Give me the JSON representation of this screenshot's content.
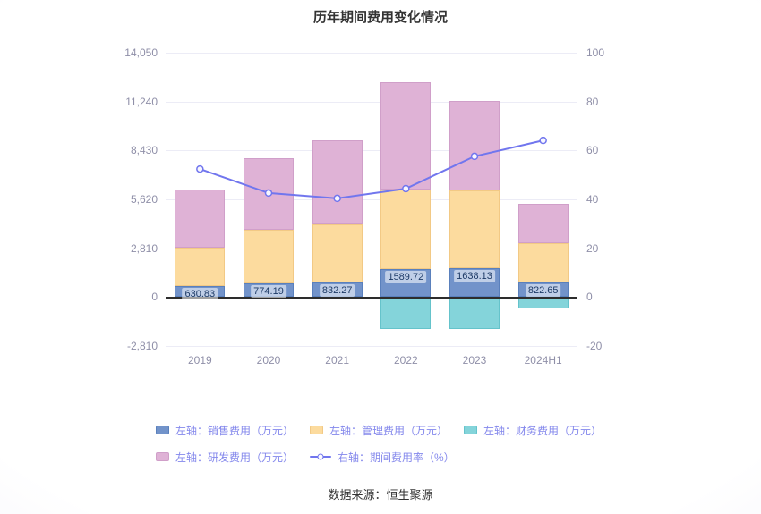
{
  "footer": "数据来源：恒生聚源",
  "chart_data": {
    "type": "bar",
    "stacked": true,
    "title": "历年期间费用变化情况",
    "grid": true,
    "legend_position": "bottom",
    "categories": [
      "2019",
      "2020",
      "2021",
      "2022",
      "2023",
      "2024H1"
    ],
    "series": [
      {
        "name": "左轴：销售费用（万元）",
        "axis": "left",
        "color": "#7293ca",
        "border": "#5a80bc",
        "values": [
          630.83,
          774.19,
          832.27,
          1589.72,
          1638.13,
          822.65
        ],
        "labels_visible": true,
        "value_labels": [
          "630.83",
          "774.19",
          "832.27",
          "1589.72",
          "1638.13",
          "822.65"
        ]
      },
      {
        "name": "左轴：管理费用（万元）",
        "axis": "left",
        "color": "#fcdb9e",
        "border": "#f2c985",
        "values": [
          2214,
          3100,
          3350,
          4600,
          4500,
          2280
        ],
        "labels_visible": false
      },
      {
        "name": "左轴：财务费用（万元）",
        "axis": "left",
        "color": "#84d4da",
        "border": "#65c3cb",
        "values": [
          0,
          0,
          0,
          -1830,
          -1830,
          -650
        ],
        "labels_visible": false
      },
      {
        "name": "左轴：研发费用（万元）",
        "axis": "left",
        "color": "#dfb2d6",
        "border": "#d09fc9",
        "values": [
          3340,
          4110,
          4830,
          6170,
          5140,
          2260
        ],
        "labels_visible": false
      }
    ],
    "line_series": {
      "name": "右轴：期间费用率（%）",
      "axis": "right",
      "color": "#7176ee",
      "values": [
        52.4,
        42.6,
        40.4,
        44.4,
        57.6,
        64.1
      ]
    },
    "left_axis": {
      "ticks": [
        "14,050",
        "11,240",
        "8,430",
        "5,620",
        "2,810",
        "0",
        "-2,810"
      ],
      "min": -2810,
      "max": 14050
    },
    "right_axis": {
      "ticks": [
        "100",
        "80",
        "60",
        "40",
        "20",
        "0",
        "-20"
      ],
      "min": -20,
      "max": 100
    }
  }
}
